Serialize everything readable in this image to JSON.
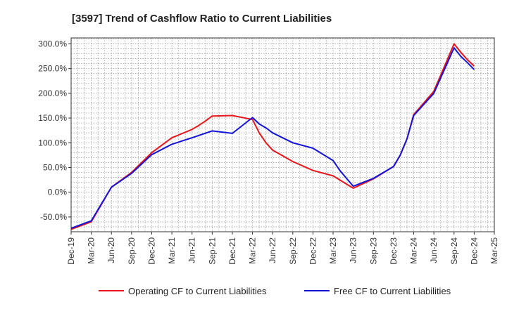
{
  "chart_data": {
    "type": "line",
    "title": "[3597]  Trend of Cashflow Ratio to Current Liabilities",
    "xlabel": "",
    "ylabel": "",
    "x_tick_labels": [
      "Dec-19",
      "Mar-20",
      "Jun-20",
      "Sep-20",
      "Dec-20",
      "Mar-21",
      "Jun-21",
      "Sep-21",
      "Dec-21",
      "Mar-22",
      "Jun-22",
      "Sep-22",
      "Dec-22",
      "Mar-23",
      "Jun-23",
      "Sep-23",
      "Dec-23",
      "Mar-24",
      "Jun-24",
      "Sep-24",
      "Dec-24",
      "Mar-25"
    ],
    "y_tick_labels": [
      "-50.0%",
      "0.0%",
      "50.0%",
      "100.0%",
      "150.0%",
      "200.0%",
      "250.0%",
      "300.0%"
    ],
    "y_ticks": [
      -50,
      0,
      50,
      100,
      150,
      200,
      250,
      300
    ],
    "ylim": [
      -80,
      312
    ],
    "grid": true,
    "legend_position": "bottom",
    "x_months": [
      0,
      1,
      2,
      3,
      4,
      5,
      6,
      7,
      8,
      9,
      10,
      11,
      12,
      13,
      14,
      15,
      16,
      17,
      18,
      19,
      20,
      21,
      22,
      23,
      24,
      25,
      26,
      27,
      28,
      29,
      30,
      31,
      32,
      33,
      34,
      35,
      36,
      37,
      38,
      39,
      40,
      41,
      42,
      43,
      44,
      45,
      46,
      47,
      48,
      49,
      50,
      51,
      52,
      53,
      54,
      55,
      56,
      57,
      58,
      59,
      60,
      61,
      62,
      63,
      64,
      65,
      66,
      67,
      68,
      69,
      70,
      71,
      72,
      73,
      74,
      75,
      76,
      77,
      78,
      79,
      80,
      81,
      82,
      83,
      84,
      85,
      86,
      87,
      88,
      89,
      90,
      91,
      92,
      93,
      94,
      95,
      96,
      97,
      98,
      99,
      100,
      101,
      102,
      103,
      104,
      105,
      106,
      107,
      108,
      109,
      110,
      111,
      112,
      113,
      114,
      115,
      116,
      117,
      118,
      119,
      120,
      121,
      122,
      123,
      124,
      125,
      126,
      127,
      128,
      129,
      130,
      131,
      132,
      133,
      134,
      135,
      136,
      137,
      138,
      139,
      140,
      141,
      142,
      143,
      144,
      145,
      146,
      147,
      148,
      149,
      150,
      151,
      152,
      153,
      154,
      155,
      156,
      157,
      158,
      159,
      160,
      161,
      162,
      163,
      164,
      165,
      166,
      167,
      168,
      169,
      170,
      171,
      172,
      173,
      174,
      175,
      176,
      177,
      178,
      179,
      180,
      181,
      182,
      183,
      184,
      185,
      186,
      187,
      188,
      189,
      190,
      191,
      192,
      193,
      194,
      195,
      196,
      197,
      198,
      199,
      200,
      201,
      202,
      203,
      204,
      205,
      206,
      207,
      208,
      209,
      210,
      211,
      212,
      213,
      214,
      215,
      216,
      217,
      218,
      219,
      220,
      221,
      222,
      223,
      224,
      225,
      226,
      227,
      228,
      229,
      230,
      231,
      232,
      233,
      234,
      235,
      236,
      237,
      238,
      239,
      240,
      241,
      242,
      243,
      244,
      245,
      246,
      247,
      248,
      249,
      250,
      251,
      252,
      253,
      254,
      255,
      256,
      257,
      258,
      259,
      260,
      261,
      262,
      263,
      264,
      265,
      266,
      267,
      268,
      269,
      270,
      271,
      272,
      273,
      274,
      275,
      276,
      277,
      278,
      279,
      280,
      281,
      282,
      283,
      284,
      285,
      286,
      287,
      288,
      289,
      290,
      291,
      292,
      293,
      294,
      295,
      296,
      297,
      298,
      299,
      300,
      301,
      302,
      303,
      304,
      305,
      306,
      307,
      308,
      309,
      310,
      311,
      312,
      313,
      314,
      315,
      316,
      317,
      318,
      319,
      320,
      321,
      322,
      323,
      324,
      325,
      326,
      327,
      328,
      329,
      330,
      331,
      332,
      333,
      334,
      335,
      336,
      337,
      338,
      339,
      340,
      341,
      342,
      343,
      344,
      345,
      346,
      347,
      348,
      349,
      350,
      351,
      352,
      353,
      354,
      355,
      356,
      357,
      358,
      359,
      360,
      361,
      362,
      363,
      364,
      365,
      366,
      367,
      368,
      369,
      370,
      371,
      372,
      373,
      374,
      375,
      376,
      377,
      378,
      379,
      380,
      381,
      382,
      383,
      384,
      385,
      386,
      387,
      388,
      389,
      390,
      391,
      392,
      393,
      394,
      395,
      396,
      397,
      398,
      399,
      400,
      401,
      402,
      403,
      404,
      405,
      406,
      407,
      408,
      409,
      410,
      411,
      412,
      413,
      414,
      415,
      416,
      417,
      418,
      419,
      420,
      421,
      422,
      423,
      424,
      425,
      426,
      427,
      428,
      429,
      430,
      431,
      432,
      433,
      434,
      435,
      436,
      437,
      438,
      439,
      440,
      441,
      442,
      443,
      444,
      445,
      446,
      447,
      448,
      449,
      450,
      451,
      452,
      453,
      454,
      455,
      456,
      457,
      458,
      459,
      460,
      461,
      462,
      463,
      464,
      465,
      466,
      467,
      468,
      469,
      470,
      471,
      472,
      473,
      474,
      475,
      476,
      477,
      478,
      479,
      480,
      481,
      482,
      483,
      484,
      485,
      486,
      487,
      488,
      489,
      490,
      491,
      492,
      493,
      494,
      495,
      496,
      497,
      498,
      499,
      500,
      501,
      502,
      503,
      504,
      505,
      506,
      507,
      508,
      509,
      510,
      511,
      512,
      513,
      514,
      515,
      516,
      517,
      518,
      519,
      520,
      521,
      522,
      523,
      524,
      525,
      526,
      527,
      528,
      529,
      530,
      531,
      532,
      533,
      534,
      535,
      536,
      537,
      538,
      539,
      540,
      541,
      542,
      543,
      544,
      545,
      546,
      547,
      548,
      549,
      550,
      551,
      552,
      553,
      554,
      555,
      556,
      557,
      558,
      559,
      560,
      561,
      562,
      563,
      564,
      565,
      566,
      567,
      568,
      569,
      570,
      571,
      572,
      573,
      574,
      575,
      576,
      577,
      578,
      579,
      580,
      581,
      582,
      583,
      584,
      585,
      586,
      587,
      588,
      589,
      590,
      591,
      592,
      593,
      594,
      595,
      596,
      597,
      598,
      599,
      600,
      601,
      602,
      603,
      604,
      605,
      606,
      607,
      608,
      609,
      610,
      611,
      612,
      613,
      614,
      615,
      616,
      617,
      618,
      619,
      620,
      621,
      622,
      623,
      624,
      625,
      626,
      627,
      628,
      629,
      630,
      631,
      632,
      633,
      634,
      635,
      636,
      637,
      638,
      639,
      640,
      641,
      642,
      643,
      644,
      645,
      646,
      647,
      648,
      649,
      650,
      651,
      652,
      653,
      654,
      655,
      656,
      657,
      658,
      659,
      660,
      661,
      662,
      663,
      664,
      665,
      666,
      667,
      668,
      669,
      670,
      671,
      672,
      673,
      674,
      675,
      676,
      677,
      678,
      679,
      680,
      681,
      682,
      683,
      684,
      685,
      686,
      687,
      688,
      689,
      690,
      691,
      692,
      693,
      694,
      695,
      696,
      697,
      698,
      699,
      700,
      701,
      702,
      703,
      704,
      705,
      706,
      707,
      708,
      709,
      710,
      711,
      712,
      713,
      714,
      715,
      716,
      717,
      718,
      719,
      720
    ],
    "series": [
      {
        "name": "Operating CF to Current Liabilities",
        "color": "#e8161b",
        "x": [
          "Dec-19",
          "Mar-20",
          "Jun-20",
          "Sep-20",
          "Dec-20",
          "Mar-21",
          "Jun-21",
          "Jul-21",
          "Aug-21",
          "Sep-21",
          "Dec-21",
          "Mar-22",
          "Apr-22",
          "May-22",
          "Jun-22",
          "Sep-22",
          "Dec-22",
          "Mar-23",
          "Jun-23",
          "Sep-23",
          "Dec-23",
          "Jan-24",
          "Feb-24",
          "Mar-24",
          "Jun-24",
          "Sep-24",
          "Oct-24",
          "Nov-24",
          "Dec-24"
        ],
        "values": [
          -75,
          -60,
          10,
          40,
          80,
          110,
          127,
          135,
          144,
          154,
          155,
          147,
          120,
          100,
          85,
          62,
          44,
          33,
          8,
          27,
          52,
          75,
          108,
          157,
          204,
          300,
          283,
          268,
          255
        ]
      },
      {
        "name": "Free CF to Current Liabilities",
        "color": "#1414d8",
        "x": [
          "Dec-19",
          "Mar-20",
          "Jun-20",
          "Sep-20",
          "Dec-20",
          "Mar-21",
          "Jun-21",
          "Sep-21",
          "Dec-21",
          "Mar-22",
          "Apr-22",
          "May-22",
          "Jun-22",
          "Sep-22",
          "Dec-22",
          "Mar-23",
          "Apr-23",
          "May-23",
          "Jun-23",
          "Sep-23",
          "Dec-23",
          "Jan-24",
          "Feb-24",
          "Mar-24",
          "Jun-24",
          "Sep-24",
          "Oct-24",
          "Nov-24",
          "Dec-24"
        ],
        "values": [
          -73,
          -58,
          10,
          38,
          76,
          97,
          110,
          124,
          119,
          151,
          138,
          130,
          120,
          100,
          89,
          64,
          44,
          28,
          12,
          28,
          52,
          75,
          108,
          155,
          200,
          292,
          275,
          262,
          248
        ]
      }
    ]
  }
}
